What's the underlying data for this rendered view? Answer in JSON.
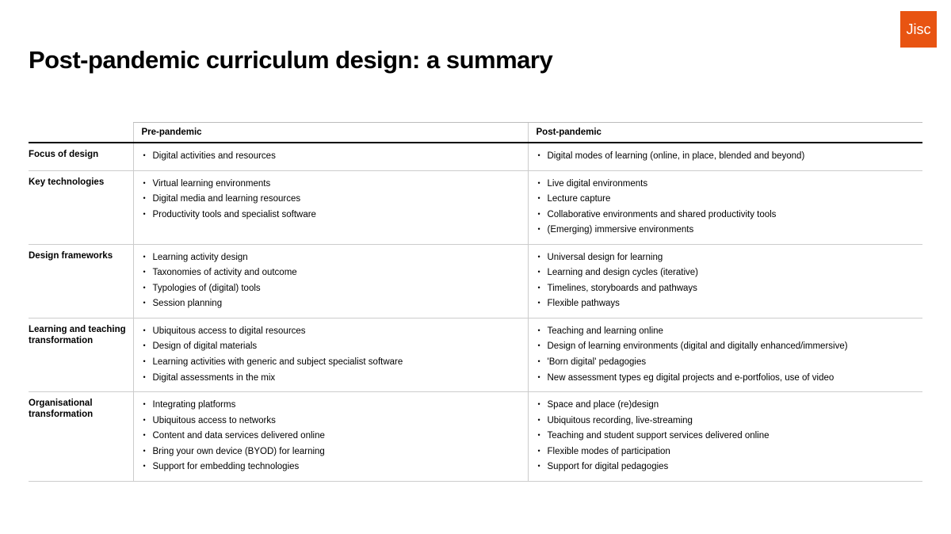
{
  "logo": {
    "text": "Jisc",
    "bg": "#e85412",
    "fg": "#ffffff"
  },
  "title": "Post-pandemic curriculum design: a summary",
  "table": {
    "columns": [
      "Pre-pandemic",
      "Post-pandemic"
    ],
    "rows": [
      {
        "label": "Focus of design",
        "pre": [
          "Digital activities and resources"
        ],
        "post": [
          "Digital modes of learning (online, in place, blended and beyond)"
        ]
      },
      {
        "label": "Key technologies",
        "pre": [
          "Virtual learning environments",
          "Digital media and learning resources",
          "Productivity tools and specialist software"
        ],
        "post": [
          "Live digital environments",
          "Lecture capture",
          "Collaborative environments and shared productivity tools",
          "(Emerging) immersive environments"
        ]
      },
      {
        "label": "Design frameworks",
        "pre": [
          "Learning activity design",
          "Taxonomies of activity and outcome",
          "Typologies of (digital) tools",
          "Session planning"
        ],
        "post": [
          "Universal design for learning",
          "Learning and design cycles (iterative)",
          "Timelines, storyboards and pathways",
          "Flexible pathways"
        ]
      },
      {
        "label": "Learning and teaching transformation",
        "pre": [
          "Ubiquitous access to digital resources",
          "Design of digital materials",
          "Learning activities with generic and subject specialist software",
          "Digital assessments in the mix"
        ],
        "post": [
          "Teaching and learning online",
          "Design of learning environments (digital and digitally enhanced/immersive)",
          "'Born digital' pedagogies",
          "New assessment types eg digital projects and e-portfolios, use of video"
        ]
      },
      {
        "label": "Organisational transformation",
        "pre": [
          "Integrating platforms",
          "Ubiquitous access to networks",
          "Content and data services delivered online",
          "Bring your own device (BYOD) for learning",
          "Support for embedding technologies"
        ],
        "post": [
          "Space and place (re)design",
          "Ubiquitous recording, live-streaming",
          "Teaching and student support services delivered online",
          "Flexible modes of participation",
          "Support for digital pedagogies"
        ]
      }
    ]
  }
}
